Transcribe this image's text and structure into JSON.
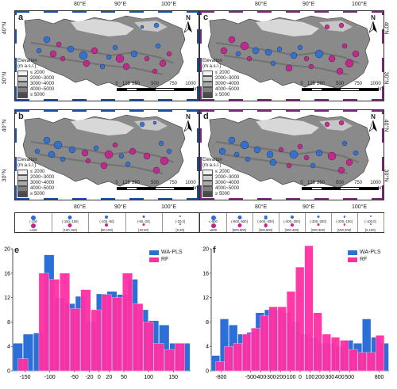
{
  "colors": {
    "blue": "#2c6fd6",
    "magenta": "#c7218f",
    "pink": "#ff2fa3",
    "frame_blue": "#1d4fa6",
    "frame_purple": "#7b2a7a"
  },
  "lon_ticks": [
    "80°E",
    "90°E",
    "100°E"
  ],
  "lat_ticks": [
    "40°N",
    "30°N"
  ],
  "north_label": "N",
  "legend": {
    "title_line1": "Elevation",
    "title_line2": "(m a.s.l.)",
    "items": [
      "≤ 2000",
      "2000~3000",
      "3000~4000",
      "4000~5000",
      "≥ 5000"
    ],
    "item_colors": [
      "#f3f3f3",
      "#cfcfcf",
      "#a9a9a9",
      "#808080",
      "#4a4a4a"
    ]
  },
  "scale": {
    "ticks": [
      "0",
      "125",
      "250",
      "500",
      "750",
      "1000"
    ],
    "unit": "km"
  },
  "maps": [
    {
      "label": "a",
      "frame": "blue"
    },
    {
      "label": "b",
      "frame": "blue"
    },
    {
      "label": "c",
      "frame": "purple"
    },
    {
      "label": "d",
      "frame": "purple"
    }
  ],
  "size_legend_left": {
    "top": [
      "(-150",
      "(-150,-100]",
      "(-100,-50]",
      "(-50,-20]",
      "(-20,0]"
    ],
    "bottom": [
      "≥150",
      "[100,150)",
      "[50,100)",
      "[20,50)",
      "[0,20)"
    ]
  },
  "size_legend_right": {
    "top": [
      "≤-800",
      "(-800,-500]",
      "(-500,-400]",
      "(-400,-300]",
      "(-300,-200]",
      "(-200,-100]",
      "(-100,0)"
    ],
    "bottom": [
      "≥800",
      "[500,800)",
      "[400,500)",
      "[300,400)",
      "[200,300)",
      "[100,200)",
      "[0,100)"
    ]
  },
  "chart_data": [
    {
      "label": "e",
      "type": "bar",
      "series": [
        {
          "name": "WA-PLS",
          "values": [
            4.5,
            6,
            6.2,
            19,
            12,
            11,
            12.2,
            8,
            12.6,
            13,
            12.5,
            15,
            10,
            8.2,
            7.5,
            4.5,
            4.5
          ]
        },
        {
          "name": "RF",
          "values": [
            2,
            0,
            16,
            15,
            16,
            10.2,
            13.3,
            10,
            12.5,
            12,
            16,
            11,
            8,
            4.5,
            3.5,
            4.5,
            0
          ]
        }
      ],
      "xlim": [
        -175,
        185
      ],
      "ylim": [
        0,
        20
      ],
      "yticks": [
        0,
        4,
        8,
        12,
        16,
        20
      ],
      "xticks": [
        -150,
        -100,
        -50,
        -20,
        0,
        20,
        50,
        100,
        150
      ],
      "legend_position": "top-right"
    },
    {
      "label": "f",
      "type": "bar",
      "series": [
        {
          "name": "WA-PLS",
          "values": [
            2.5,
            8.5,
            7.5,
            6,
            6.3,
            9.5,
            10,
            10,
            9.5,
            8,
            6,
            5.5,
            4.5,
            4.5,
            4,
            5,
            4.5,
            8.5,
            5.5,
            4.5
          ]
        },
        {
          "name": "RF",
          "values": [
            1.5,
            4,
            4.5,
            6,
            7,
            9,
            10.5,
            10.5,
            13,
            17,
            20.5,
            9.5,
            6,
            5.5,
            5,
            3.5,
            3,
            3,
            5.8,
            0
          ]
        }
      ],
      "xlim": [
        -900,
        900
      ],
      "ylim": [
        0,
        20
      ],
      "yticks": [
        0,
        4,
        8,
        12,
        16,
        20
      ],
      "xticks": [
        -800,
        -500,
        -400,
        -300,
        -200,
        -100,
        0,
        100,
        200,
        300,
        400,
        500,
        800
      ],
      "legend_position": "top-right"
    }
  ]
}
